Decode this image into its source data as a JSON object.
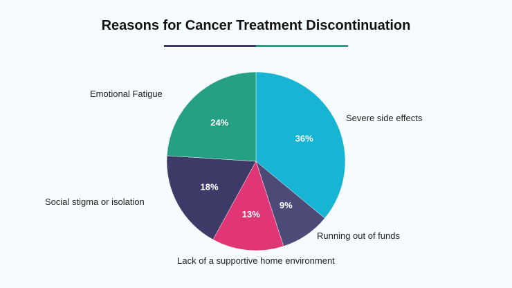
{
  "title": "Reasons for Cancer Treatment Discontinuation",
  "title_bar_colors": [
    "#3e3a6b",
    "#26a084"
  ],
  "chart_data": {
    "type": "pie",
    "title": "Reasons for Cancer Treatment Discontinuation",
    "slices": [
      {
        "label": "Severe side effects",
        "value": 36,
        "value_label": "36%",
        "color": "#17b4d4"
      },
      {
        "label": "Running out of funds",
        "value": 9,
        "value_label": "9%",
        "color": "#4e4a78"
      },
      {
        "label": "Lack of a supportive home environment",
        "value": 13,
        "value_label": "13%",
        "color": "#e03676"
      },
      {
        "label": "Social stigma or isolation",
        "value": 18,
        "value_label": "18%",
        "color": "#3e3a67"
      },
      {
        "label": "Emotional Fatigue",
        "value": 24,
        "value_label": "24%",
        "color": "#26a084"
      }
    ],
    "start_angle": "top, clockwise",
    "legend": "none"
  }
}
